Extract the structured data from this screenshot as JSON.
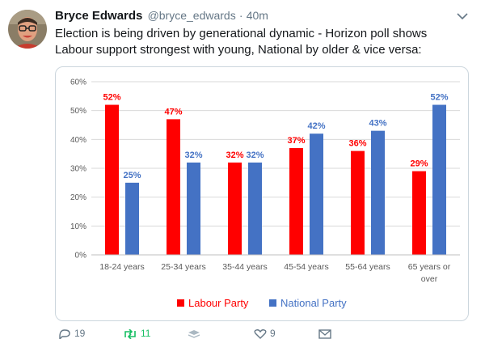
{
  "tweet": {
    "author_name": "Bryce Edwards",
    "handle": "@bryce_edwards",
    "separator": "·",
    "time": "40m",
    "text": "Election is being driven by generational dynamic - Horizon poll shows Labour support strongest with young, National by older & vice versa:"
  },
  "actions": {
    "reply_count": "19",
    "retweet_count": "11",
    "like_count": "9"
  },
  "icons": {
    "more": "chevron-down-icon",
    "reply": "reply-icon",
    "retweet": "retweet-icon",
    "stack": "layers-icon",
    "like": "heart-icon",
    "dm": "envelope-icon"
  },
  "colors": {
    "labour": "#ff0000",
    "national": "#4472c4",
    "retweet_green": "#17bf63"
  },
  "chart_data": {
    "type": "bar",
    "categories": [
      "18-24 years",
      "25-34 years",
      "35-44 years",
      "45-54 years",
      "55-64 years",
      "65 years or over"
    ],
    "series": [
      {
        "name": "Labour Party",
        "values": [
          52,
          47,
          32,
          37,
          36,
          29
        ],
        "labels": [
          "52%",
          "47%",
          "32%",
          "37%",
          "36%",
          "29%"
        ]
      },
      {
        "name": "National Party",
        "values": [
          25,
          32,
          32,
          42,
          43,
          52
        ],
        "labels": [
          "25%",
          "32%",
          "32%",
          "42%",
          "43%",
          "52%"
        ]
      }
    ],
    "yticks": [
      "0%",
      "10%",
      "20%",
      "30%",
      "40%",
      "50%",
      "60%"
    ],
    "ylim": [
      0,
      60
    ],
    "grid": true,
    "legend": "bottom"
  }
}
